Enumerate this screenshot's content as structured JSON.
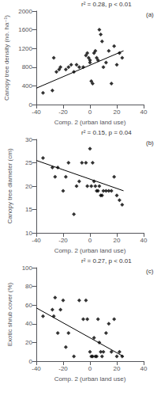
{
  "chart_data": [
    {
      "type": "scatter",
      "title": "(a)",
      "annotation": "r² = 0.28, p < 0.01",
      "xlabel": "Comp. 2 (urban land use)",
      "ylabel": "Canopy tree density (no. ha⁻¹)",
      "xlim": [
        -40,
        40
      ],
      "xticks": [
        -40,
        -20,
        0,
        20,
        40
      ],
      "ylim": [
        0,
        2000
      ],
      "yticks": [
        0,
        400,
        800,
        1200,
        1600,
        2000
      ],
      "grid": false,
      "series": [
        {
          "type": "scatter",
          "marker": "diamond",
          "color": "#000000",
          "x": [
            -35,
            -28,
            -27,
            -25,
            -23,
            -22,
            -18,
            -16,
            -14,
            -12,
            -10,
            -8,
            -5,
            -3,
            -2,
            -1,
            0,
            0,
            1,
            2,
            3,
            4,
            5,
            6,
            7,
            8,
            9,
            10,
            12,
            14,
            16,
            18,
            20,
            22,
            24
          ],
          "values": [
            250,
            300,
            1000,
            700,
            750,
            800,
            750,
            800,
            850,
            700,
            850,
            800,
            800,
            1050,
            1100,
            1000,
            950,
            900,
            500,
            450,
            1100,
            1150,
            1000,
            950,
            1600,
            1500,
            1350,
            800,
            900,
            1150,
            450,
            1250,
            850,
            1100,
            1000
          ]
        },
        {
          "type": "line",
          "line_style": "solid",
          "color": "#000000",
          "x": [
            -40,
            25
          ],
          "values": [
            350,
            1150
          ]
        }
      ]
    },
    {
      "type": "scatter",
      "title": "(b)",
      "annotation": "r² = 0.15, p = 0.04",
      "xlabel": "Comp. 2 (urban land use)",
      "ylabel": "Canopy tree diameter (cm)",
      "xlim": [
        -40,
        40
      ],
      "xticks": [
        -40,
        -20,
        0,
        20,
        40
      ],
      "ylim": [
        10,
        30
      ],
      "yticks": [
        10,
        15,
        20,
        25,
        30
      ],
      "grid": false,
      "series": [
        {
          "type": "scatter",
          "marker": "diamond",
          "color": "#000000",
          "x": [
            -35,
            -28,
            -26,
            -24,
            -20,
            -18,
            -16,
            -12,
            -10,
            -8,
            -6,
            -3,
            -2,
            0,
            1,
            2,
            3,
            4,
            5,
            6,
            7,
            8,
            9,
            10,
            12,
            14,
            16,
            18,
            20,
            22,
            24
          ],
          "values": [
            26,
            24,
            22,
            24,
            19,
            22,
            25,
            14,
            20,
            21,
            25,
            25,
            20,
            28,
            20,
            25,
            21,
            20,
            19,
            19,
            20,
            18,
            18,
            19,
            19,
            19,
            19,
            22,
            18,
            17,
            16
          ]
        },
        {
          "type": "line",
          "line_style": "solid",
          "color": "#000000",
          "x": [
            -40,
            25
          ],
          "values": [
            25.5,
            19.0
          ]
        }
      ]
    },
    {
      "type": "scatter",
      "title": "(c)",
      "annotation": "r² = 0.27, p < 0.01",
      "xlabel": "Comp. 2 (urban land use)",
      "ylabel": "Exotic shrub cover (%)",
      "xlim": [
        -40,
        40
      ],
      "xticks": [
        -40,
        -20,
        0,
        20,
        40
      ],
      "ylim": [
        0,
        100
      ],
      "yticks": [
        0,
        20,
        40,
        60,
        80,
        100
      ],
      "grid": false,
      "series": [
        {
          "type": "scatter",
          "marker": "diamond",
          "color": "#000000",
          "x": [
            -35,
            -28,
            -27,
            -26,
            -24,
            -22,
            -20,
            -18,
            -16,
            -12,
            -8,
            -5,
            -3,
            -2,
            0,
            1,
            2,
            3,
            4,
            5,
            6,
            7,
            8,
            9,
            10,
            12,
            14,
            16,
            18,
            20,
            22,
            24
          ],
          "values": [
            48,
            55,
            48,
            68,
            30,
            55,
            65,
            15,
            30,
            5,
            65,
            45,
            65,
            45,
            10,
            5,
            5,
            25,
            5,
            5,
            45,
            20,
            10,
            5,
            10,
            30,
            40,
            10,
            45,
            5,
            10,
            5
          ]
        },
        {
          "type": "line",
          "line_style": "solid",
          "color": "#000000",
          "x": [
            -40,
            25
          ],
          "values": [
            57,
            5
          ]
        }
      ]
    }
  ]
}
